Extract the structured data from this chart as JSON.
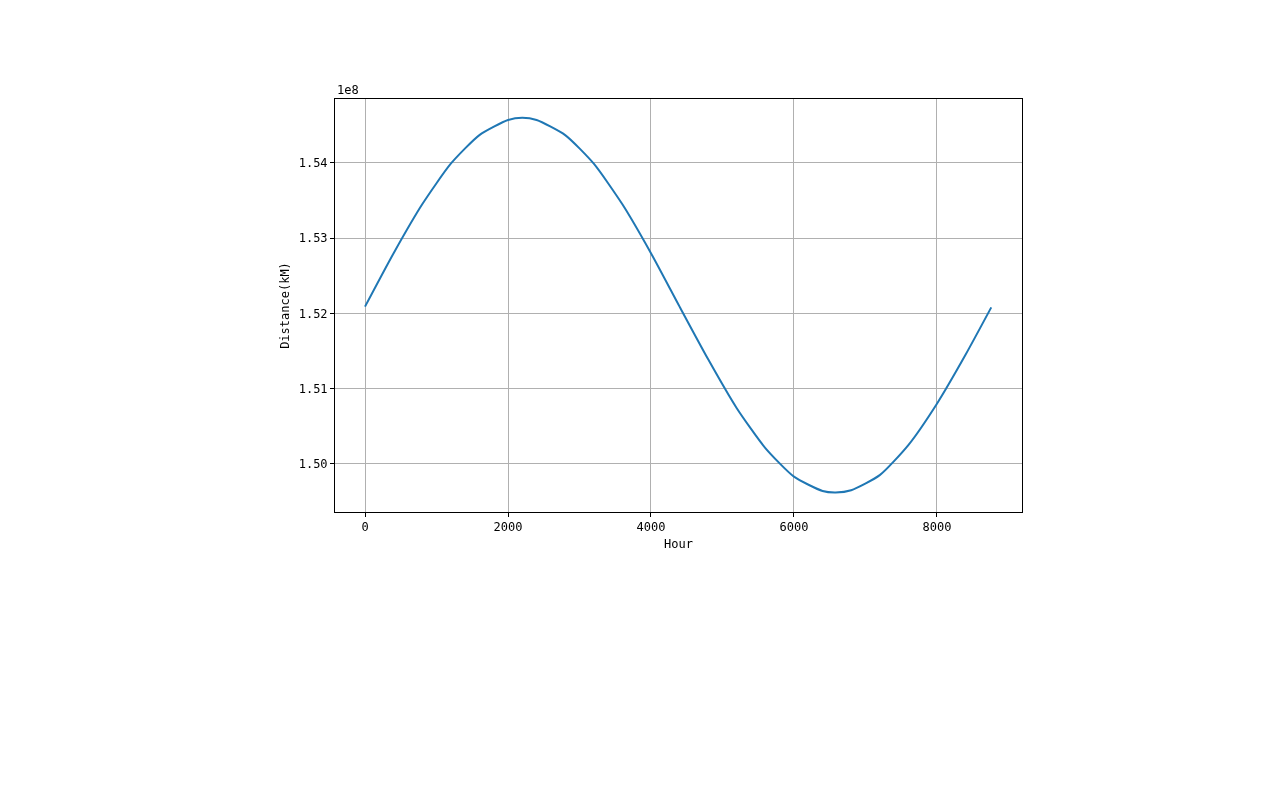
{
  "chart_data": {
    "type": "line",
    "xlabel": "Hour",
    "ylabel": "Distance(kM)",
    "annotations": [
      "1e8"
    ],
    "x": [
      0,
      400,
      800,
      1200,
      1600,
      2000,
      2200,
      2400,
      2800,
      3200,
      3600,
      4000,
      4400,
      4800,
      5200,
      5600,
      6000,
      6400,
      6583,
      6800,
      7200,
      7600,
      8000,
      8400,
      8760
    ],
    "series": [
      {
        "color": "#1f77b4",
        "values": [
          1.5209,
          1.528,
          1.5345,
          1.5399,
          1.5437,
          1.5457,
          1.546,
          1.5457,
          1.5437,
          1.5399,
          1.5345,
          1.528,
          1.5209,
          1.5139,
          1.5074,
          1.5021,
          1.4983,
          1.4964,
          1.4962,
          1.4965,
          1.4985,
          1.5025,
          1.508,
          1.5145,
          1.5208
        ]
      }
    ],
    "xlim": [
      -420,
      9190
    ],
    "xticks": [
      0,
      2000,
      4000,
      6000,
      8000
    ],
    "ylim": [
      1.4936,
      1.5485
    ],
    "yticks": [
      {
        "value": 1.5,
        "label": "1.50"
      },
      1.51,
      1.52,
      1.53,
      1.54
    ],
    "grid": true,
    "marker": "none",
    "line_style": "solid"
  }
}
